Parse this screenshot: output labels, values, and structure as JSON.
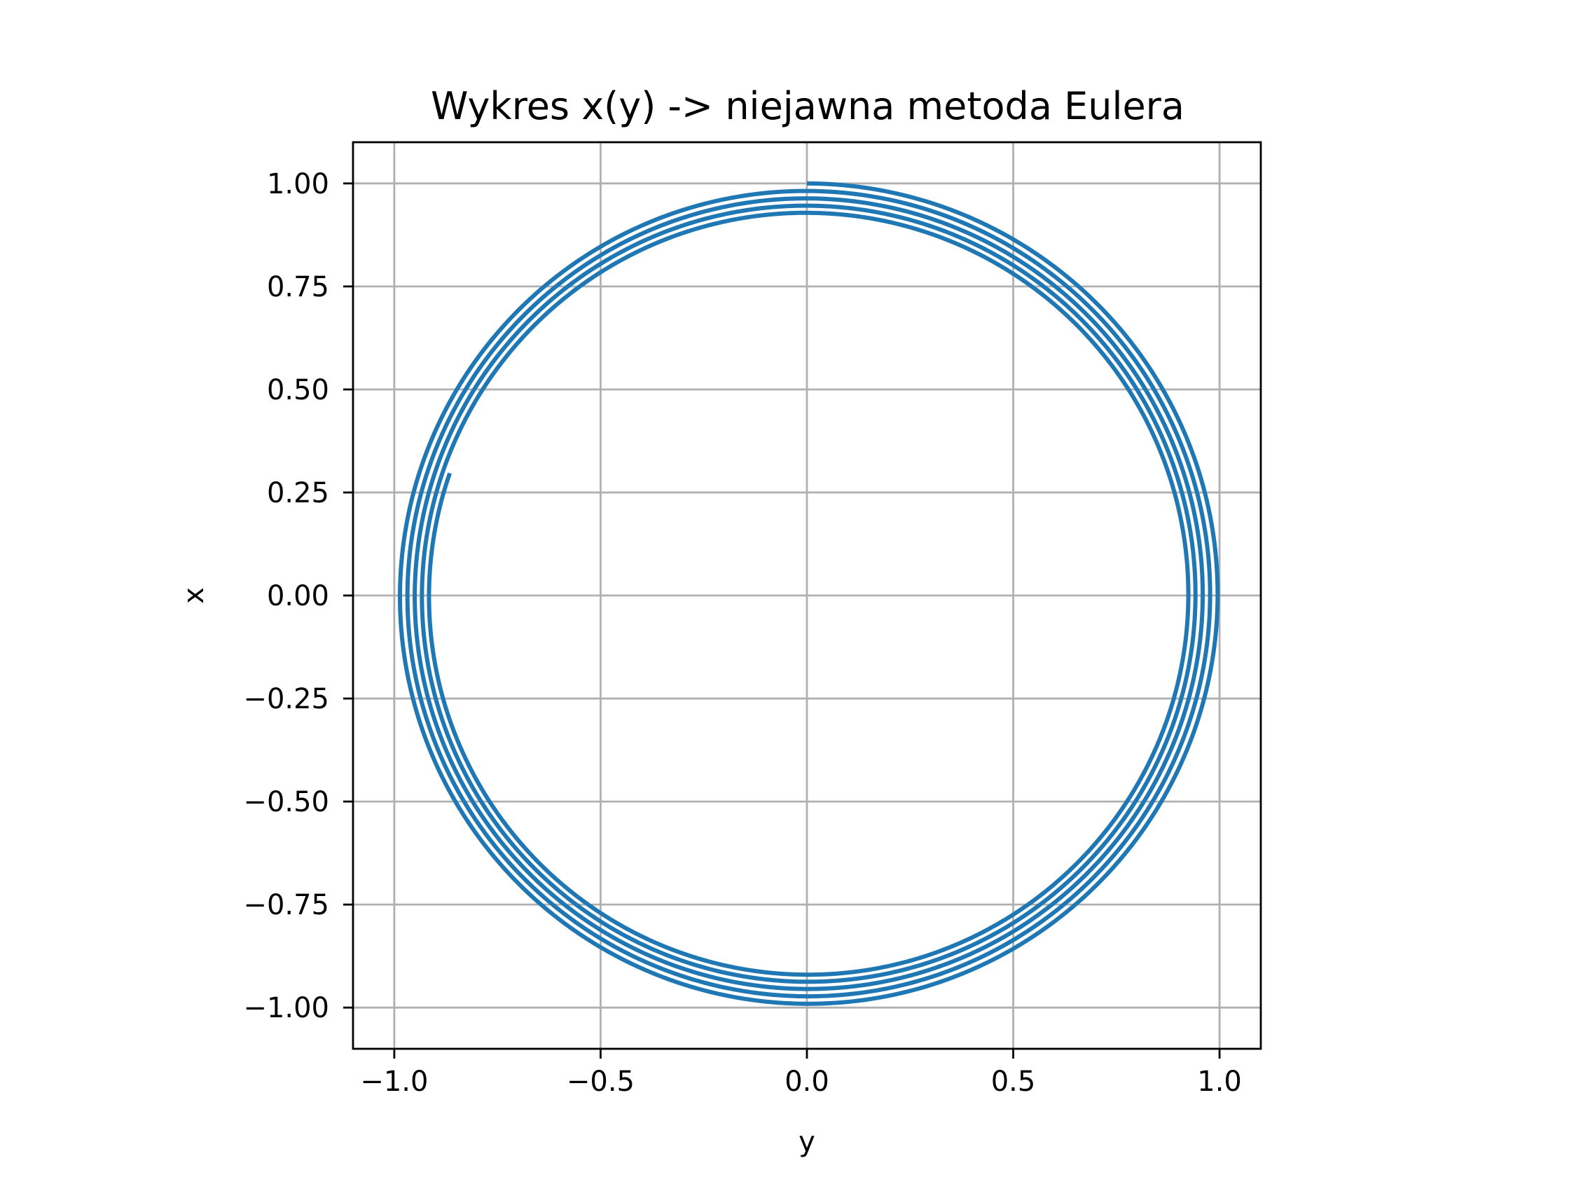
{
  "chart_data": {
    "type": "line",
    "title": "Wykres x(y) -> niejawna metoda Eulera",
    "xlabel": "y",
    "ylabel": "x",
    "xlim": [
      -1.1,
      1.1
    ],
    "ylim": [
      -1.1,
      1.1
    ],
    "xticks": [
      -1.0,
      -0.5,
      0.0,
      0.5,
      1.0
    ],
    "xtick_labels": [
      "−1.0",
      "−0.5",
      "0.0",
      "0.5",
      "1.0"
    ],
    "yticks": [
      1.0,
      0.75,
      0.5,
      0.25,
      0.0,
      -0.25,
      -0.5,
      -0.75,
      -1.0
    ],
    "ytick_labels": [
      "1.00",
      "0.75",
      "0.50",
      "0.25",
      "0.00",
      "−0.25",
      "−0.50",
      "−0.75",
      "−1.00"
    ],
    "grid": true,
    "series": [
      {
        "color": "#1f77b4",
        "description_of_curve": "inward spiral",
        "start": {
          "y": 0.0,
          "x": 1.0
        },
        "end": {
          "y": -0.866,
          "x": 0.297
        },
        "start_radius": 1.0,
        "end_radius": 0.915,
        "turns": 4.2
      }
    ]
  }
}
